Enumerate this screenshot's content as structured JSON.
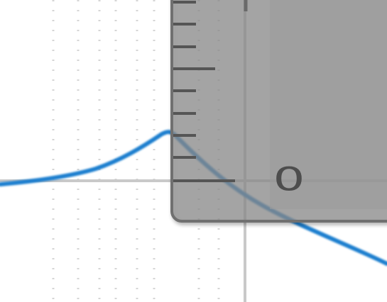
{
  "ruler": {
    "zero_label": "0"
  },
  "colors": {
    "curve": "#1f7fcf",
    "grid_dotted": "#d4d4d4",
    "axis": "#bdbdbd",
    "ruler_fill": "#8c8c8c",
    "ruler_edge": "#6e6e6e",
    "tick": "#555555"
  },
  "icons": {
    "curve": "peak-curve",
    "ruler": "measuring-ruler"
  }
}
